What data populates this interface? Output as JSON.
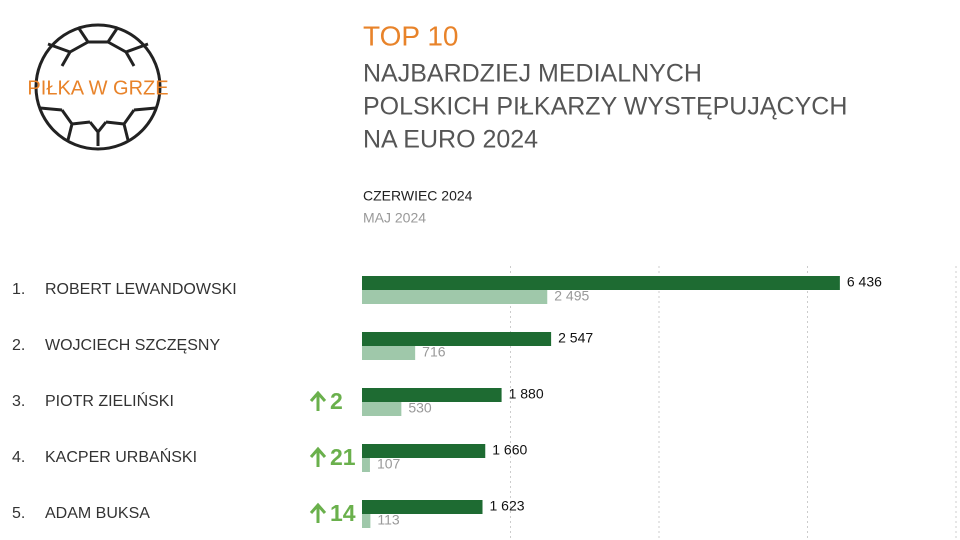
{
  "logo": {
    "text": "PIŁKA W GRZE"
  },
  "chart_data": {
    "type": "bar",
    "orientation": "horizontal",
    "title": "TOP 10",
    "subtitle": [
      "NAJBARDZIEJ MEDIALNYCH",
      "POLSKICH PIŁKARZY WYSTĘPUJĄCYCH",
      "NA EURO 2024"
    ],
    "ranks": [
      "1.",
      "2.",
      "3.",
      "4.",
      "5."
    ],
    "categories": [
      "ROBERT LEWANDOWSKI",
      "WOJCIECH SZCZĘSNY",
      "PIOTR ZIELIŃSKI",
      "KACPER URBAŃSKI",
      "ADAM BUKSA"
    ],
    "rank_changes": [
      null,
      null,
      2,
      21,
      14
    ],
    "rank_change_color": "#6ab04c",
    "series": [
      {
        "name": "CZERWIEC 2024",
        "color": "#1e6b32",
        "label_color": "#111111",
        "values": [
          6436,
          2547,
          1880,
          1660,
          1623
        ],
        "value_labels": [
          "6 436",
          "2 547",
          "1 880",
          "1 660",
          "1 623"
        ]
      },
      {
        "name": "MAJ 2024",
        "color": "#9fc8aa",
        "label_color": "#999999",
        "values": [
          2495,
          716,
          530,
          107,
          113
        ],
        "value_labels": [
          "2 495",
          "716",
          "530",
          "107",
          "113"
        ]
      }
    ],
    "xlim": [
      0,
      8000
    ],
    "xticks": [
      2000,
      4000,
      6000,
      8000
    ],
    "grid": true
  }
}
